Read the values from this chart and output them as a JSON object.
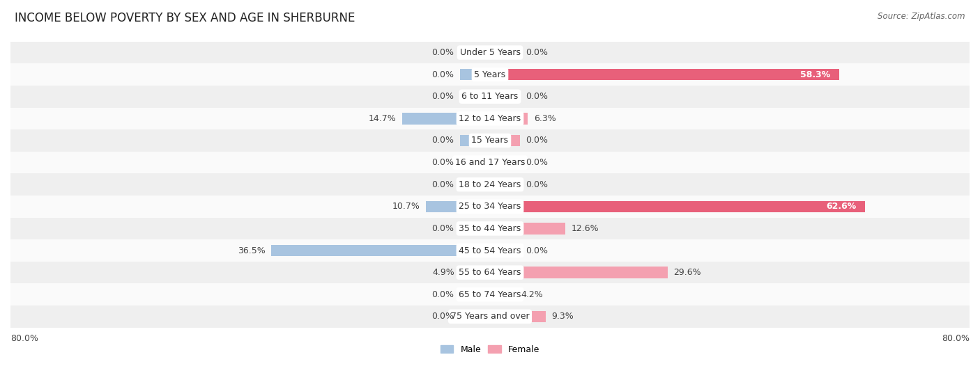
{
  "title": "INCOME BELOW POVERTY BY SEX AND AGE IN SHERBURNE",
  "source": "Source: ZipAtlas.com",
  "categories": [
    "Under 5 Years",
    "5 Years",
    "6 to 11 Years",
    "12 to 14 Years",
    "15 Years",
    "16 and 17 Years",
    "18 to 24 Years",
    "25 to 34 Years",
    "35 to 44 Years",
    "45 to 54 Years",
    "55 to 64 Years",
    "65 to 74 Years",
    "75 Years and over"
  ],
  "male": [
    0.0,
    0.0,
    0.0,
    14.7,
    0.0,
    0.0,
    0.0,
    10.7,
    0.0,
    36.5,
    4.9,
    0.0,
    0.0
  ],
  "female": [
    0.0,
    58.3,
    0.0,
    6.3,
    0.0,
    0.0,
    0.0,
    62.6,
    12.6,
    0.0,
    29.6,
    4.2,
    9.3
  ],
  "male_color": "#a8c4e0",
  "female_color": "#f4a0b0",
  "female_color_dark": "#e8607a",
  "row_bg_even": "#efefef",
  "row_bg_odd": "#fafafa",
  "xlim": 80.0,
  "stub_size": 5.0,
  "legend_male": "Male",
  "legend_female": "Female",
  "title_fontsize": 12,
  "source_fontsize": 8.5,
  "label_fontsize": 9,
  "category_fontsize": 9
}
